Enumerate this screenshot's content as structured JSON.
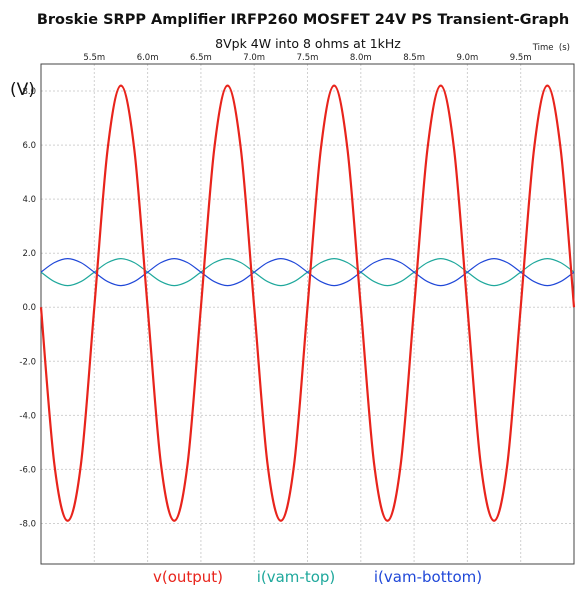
{
  "chart_data": {
    "type": "line",
    "title": "Broskie SRPP Amplifier IRFP260 MOSFET 24V PS Transient-Graph",
    "subtitle": "8Vpk 4W into 8 ohms at 1kHz",
    "xlabel": "Time  (s)",
    "ylabel": "(V)",
    "xlim": [
      5.0,
      10.0
    ],
    "ylim": [
      -9.5,
      9.0
    ],
    "x_unit_scale": "ms",
    "x_ticks": [
      {
        "value": 5.5,
        "label": "5.5m"
      },
      {
        "value": 6.0,
        "label": "6.0m"
      },
      {
        "value": 6.5,
        "label": "6.5m"
      },
      {
        "value": 7.0,
        "label": "7.0m"
      },
      {
        "value": 7.5,
        "label": "7.5m"
      },
      {
        "value": 8.0,
        "label": "8.0m"
      },
      {
        "value": 8.5,
        "label": "8.5m"
      },
      {
        "value": 9.0,
        "label": "9.0m"
      },
      {
        "value": 9.5,
        "label": "9.5m"
      }
    ],
    "y_ticks": [
      {
        "value": 8,
        "label": "8.0"
      },
      {
        "value": 6,
        "label": "6.0"
      },
      {
        "value": 4,
        "label": "4.0"
      },
      {
        "value": 2,
        "label": "2.0"
      },
      {
        "value": 0,
        "label": "0.0"
      },
      {
        "value": -2,
        "label": "-2.0"
      },
      {
        "value": -4,
        "label": "-4.0"
      },
      {
        "value": -6,
        "label": "-6.0"
      },
      {
        "value": -8,
        "label": "-8.0"
      }
    ],
    "grid": true,
    "legend_position": "bottom",
    "series": [
      {
        "name": "v(output)",
        "color": "#e8241c",
        "values": {
          "x": [
            5.0,
            5.125,
            5.25,
            5.375,
            5.5,
            5.625,
            5.75,
            5.875,
            6.0,
            6.125,
            6.25,
            6.375,
            6.5,
            6.625,
            6.75,
            6.875,
            7.0,
            7.125,
            7.25,
            7.375,
            7.5,
            7.625,
            7.75,
            7.875,
            8.0,
            8.125,
            8.25,
            8.375,
            8.5,
            8.625,
            8.75,
            8.875,
            9.0,
            9.125,
            9.25,
            9.375,
            9.5,
            9.625,
            9.75,
            9.875,
            10.0
          ],
          "y": [
            0.0,
            -5.8,
            -7.9,
            -5.8,
            0.0,
            5.85,
            8.2,
            5.85,
            0.0,
            -5.8,
            -7.9,
            -5.8,
            0.0,
            5.85,
            8.2,
            5.85,
            0.0,
            -5.8,
            -7.9,
            -5.8,
            0.0,
            5.85,
            8.2,
            5.85,
            0.0,
            -5.8,
            -7.9,
            -5.8,
            0.0,
            5.85,
            8.2,
            5.85,
            0.0,
            -5.8,
            -7.9,
            -5.8,
            0.0,
            5.85,
            8.2,
            5.85,
            0.0
          ]
        }
      },
      {
        "name": "i(vam-top)",
        "color": "#1fa89c",
        "values": {
          "x": [
            5.0,
            5.125,
            5.25,
            5.375,
            5.5,
            5.625,
            5.75,
            5.875,
            6.0,
            6.125,
            6.25,
            6.375,
            6.5,
            6.625,
            6.75,
            6.875,
            7.0,
            7.125,
            7.25,
            7.375,
            7.5,
            7.625,
            7.75,
            7.875,
            8.0,
            8.125,
            8.25,
            8.375,
            8.5,
            8.625,
            8.75,
            8.875,
            9.0,
            9.125,
            9.25,
            9.375,
            9.5,
            9.625,
            9.75,
            9.875,
            10.0
          ],
          "y": [
            1.3,
            0.95,
            0.8,
            0.95,
            1.3,
            1.65,
            1.8,
            1.65,
            1.3,
            0.95,
            0.8,
            0.95,
            1.3,
            1.65,
            1.8,
            1.65,
            1.3,
            0.95,
            0.8,
            0.95,
            1.3,
            1.65,
            1.8,
            1.65,
            1.3,
            0.95,
            0.8,
            0.95,
            1.3,
            1.65,
            1.8,
            1.65,
            1.3,
            0.95,
            0.8,
            0.95,
            1.3,
            1.65,
            1.8,
            1.65,
            1.3
          ]
        }
      },
      {
        "name": "i(vam-bottom)",
        "color": "#2048d8",
        "values": {
          "x": [
            5.0,
            5.125,
            5.25,
            5.375,
            5.5,
            5.625,
            5.75,
            5.875,
            6.0,
            6.125,
            6.25,
            6.375,
            6.5,
            6.625,
            6.75,
            6.875,
            7.0,
            7.125,
            7.25,
            7.375,
            7.5,
            7.625,
            7.75,
            7.875,
            8.0,
            8.125,
            8.25,
            8.375,
            8.5,
            8.625,
            8.75,
            8.875,
            9.0,
            9.125,
            9.25,
            9.375,
            9.5,
            9.625,
            9.75,
            9.875,
            10.0
          ],
          "y": [
            1.3,
            1.65,
            1.8,
            1.65,
            1.3,
            0.95,
            0.8,
            0.95,
            1.3,
            1.65,
            1.8,
            1.65,
            1.3,
            0.95,
            0.8,
            0.95,
            1.3,
            1.65,
            1.8,
            1.65,
            1.3,
            0.95,
            0.8,
            0.95,
            1.3,
            1.65,
            1.8,
            1.65,
            1.3,
            0.95,
            0.8,
            0.95,
            1.3,
            1.65,
            1.8,
            1.65,
            1.3,
            0.95,
            0.8,
            0.95,
            1.3
          ]
        }
      }
    ]
  }
}
